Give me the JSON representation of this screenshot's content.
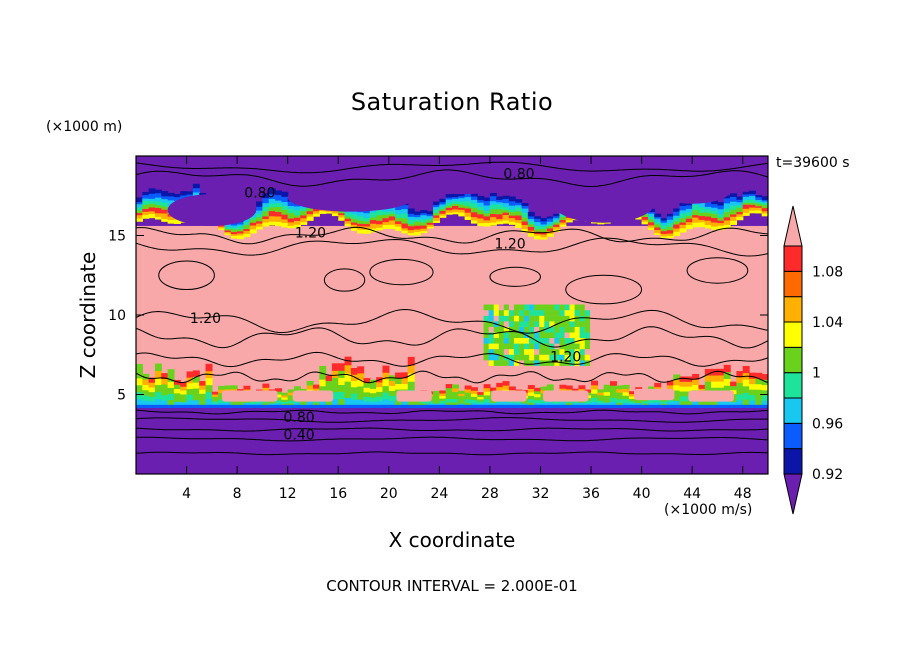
{
  "chart_data": {
    "type": "heatmap",
    "title": "Saturation Ratio",
    "xlabel": "X coordinate",
    "ylabel": "Z coordinate",
    "x_unit": "(×1000 m/s)",
    "y_unit": "(×1000 m)",
    "time_label": "t=39600 s",
    "footer": "CONTOUR INTERVAL = 2.000E-01",
    "xlim": [
      0,
      50
    ],
    "ylim": [
      0,
      20
    ],
    "x_ticks": [
      4,
      8,
      12,
      16,
      20,
      24,
      28,
      32,
      36,
      40,
      44,
      48
    ],
    "y_ticks": [
      5,
      10,
      15
    ],
    "colorbar": {
      "levels": [
        0.92,
        0.94,
        0.96,
        0.98,
        1.0,
        1.02,
        1.04,
        1.06,
        1.08,
        1.1
      ],
      "tick_labels": [
        "0.92",
        "0.96",
        "1",
        "1.04",
        "1.08"
      ],
      "colors": [
        "#6a1fb0",
        "#0b16a8",
        "#0a5cff",
        "#19c8f0",
        "#1ee39a",
        "#6ad21c",
        "#ffff00",
        "#ffb000",
        "#ff6a00",
        "#ff2a2a",
        "#f8a8a8"
      ]
    },
    "contour_labels": [
      {
        "text": "0.80",
        "x": 9.8,
        "y": 17.7
      },
      {
        "text": "0.80",
        "x": 30.3,
        "y": 18.9
      },
      {
        "text": "1.20",
        "x": 13.8,
        "y": 15.2
      },
      {
        "text": "1.20",
        "x": 29.6,
        "y": 14.5
      },
      {
        "text": "1.20",
        "x": 5.5,
        "y": 9.8
      },
      {
        "text": "1.20",
        "x": 34.0,
        "y": 7.4
      },
      {
        "text": "0.80",
        "x": 12.9,
        "y": 3.6
      },
      {
        "text": "0.40",
        "x": 12.9,
        "y": 2.5
      }
    ]
  }
}
